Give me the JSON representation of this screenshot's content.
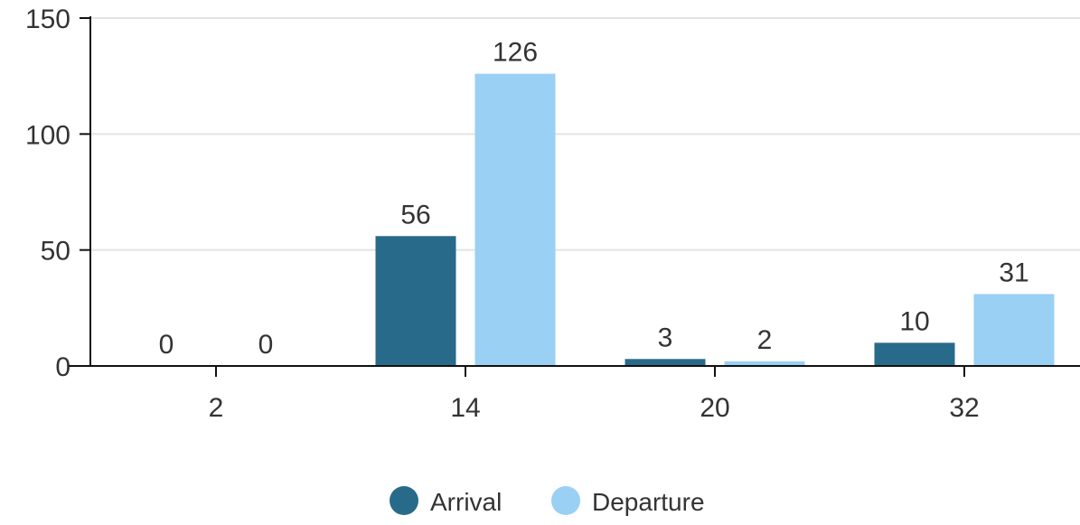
{
  "chart_data": {
    "type": "bar",
    "title": "",
    "xlabel": "",
    "ylabel": "",
    "categories": [
      "2",
      "14",
      "20",
      "32"
    ],
    "series": [
      {
        "name": "Arrival",
        "values": [
          0,
          56,
          3,
          10
        ],
        "color": "#286a8a"
      },
      {
        "name": "Departure",
        "values": [
          0,
          126,
          2,
          31
        ],
        "color": "#99d0f4"
      }
    ],
    "ylim": [
      0,
      150
    ],
    "yticks": [
      "0",
      "50",
      "100",
      "150"
    ],
    "grid": true,
    "legend_position": "bottom-center",
    "data_labels": true
  }
}
